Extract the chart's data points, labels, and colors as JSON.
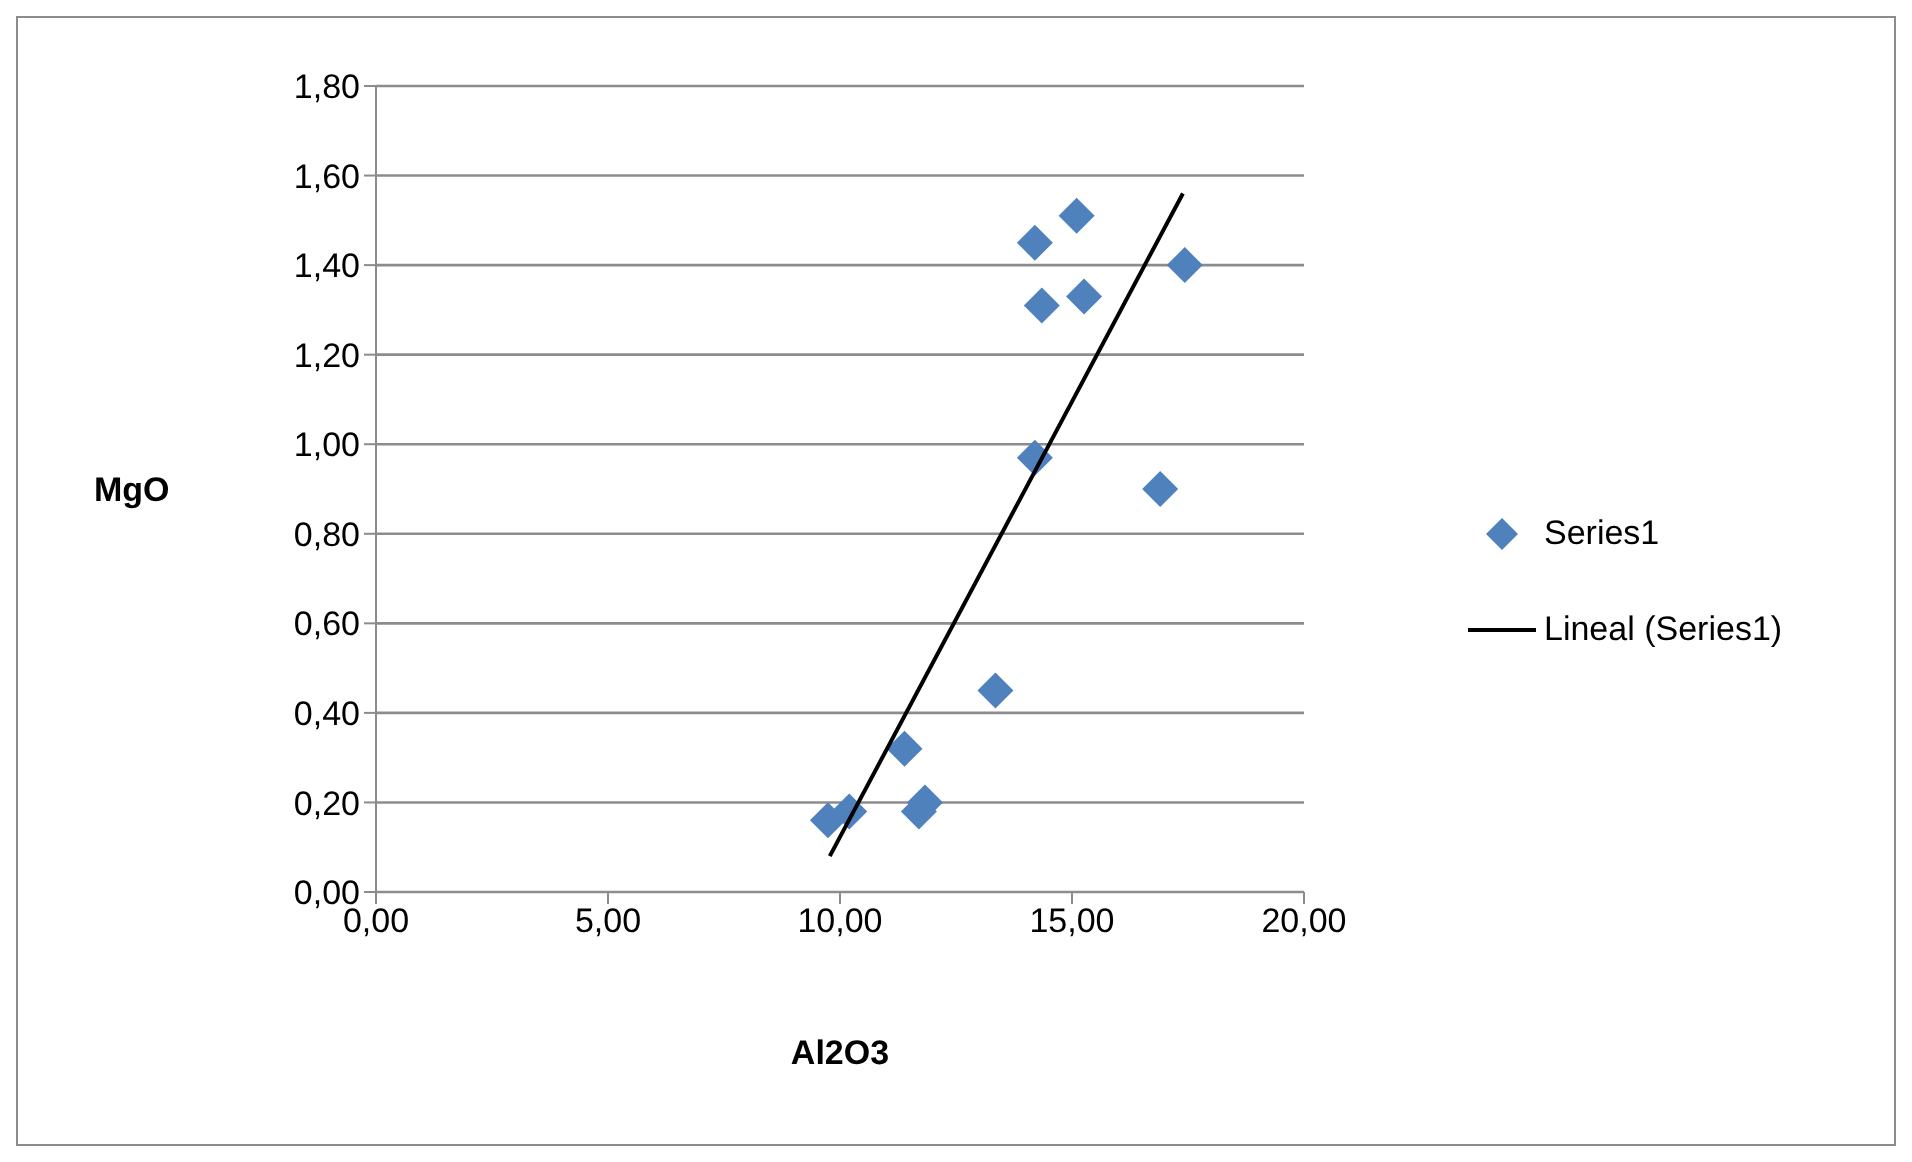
{
  "chart_data": {
    "type": "scatter",
    "xlabel": "Al2O3",
    "ylabel": "MgO",
    "xlim": [
      0,
      20
    ],
    "ylim": [
      0,
      1.8
    ],
    "xticks": [
      {
        "value": 0,
        "label": "0,00"
      },
      {
        "value": 5,
        "label": "5,00"
      },
      {
        "value": 10,
        "label": "10,00"
      },
      {
        "value": 15,
        "label": "15,00"
      },
      {
        "value": 20,
        "label": "20,00"
      }
    ],
    "yticks": [
      {
        "value": 0,
        "label": "0,00"
      },
      {
        "value": 0.2,
        "label": "0,20"
      },
      {
        "value": 0.4,
        "label": "0,40"
      },
      {
        "value": 0.6,
        "label": "0,60"
      },
      {
        "value": 0.8,
        "label": "0,80"
      },
      {
        "value": 1.0,
        "label": "1,00"
      },
      {
        "value": 1.2,
        "label": "1,20"
      },
      {
        "value": 1.4,
        "label": "1,40"
      },
      {
        "value": 1.6,
        "label": "1,60"
      },
      {
        "value": 1.8,
        "label": "1,80"
      }
    ],
    "grid": "y",
    "legend": "right",
    "series": [
      {
        "name": "Series1",
        "color": "#4f81bd",
        "marker": "diamond",
        "x": [
          9.74,
          10.2,
          11.39,
          11.7,
          11.83,
          13.35,
          14.2,
          14.2,
          14.35,
          15.1,
          15.26,
          16.9,
          17.43
        ],
        "values": [
          0.16,
          0.18,
          0.32,
          0.18,
          0.2,
          0.45,
          0.97,
          1.45,
          1.31,
          1.51,
          1.33,
          0.9,
          1.4
        ]
      },
      {
        "name": "Lineal (Series1)",
        "type": "line",
        "color": "#000000",
        "line_style": "solid",
        "x": [
          9.78,
          17.39
        ],
        "values": [
          0.08,
          1.56
        ]
      }
    ]
  }
}
